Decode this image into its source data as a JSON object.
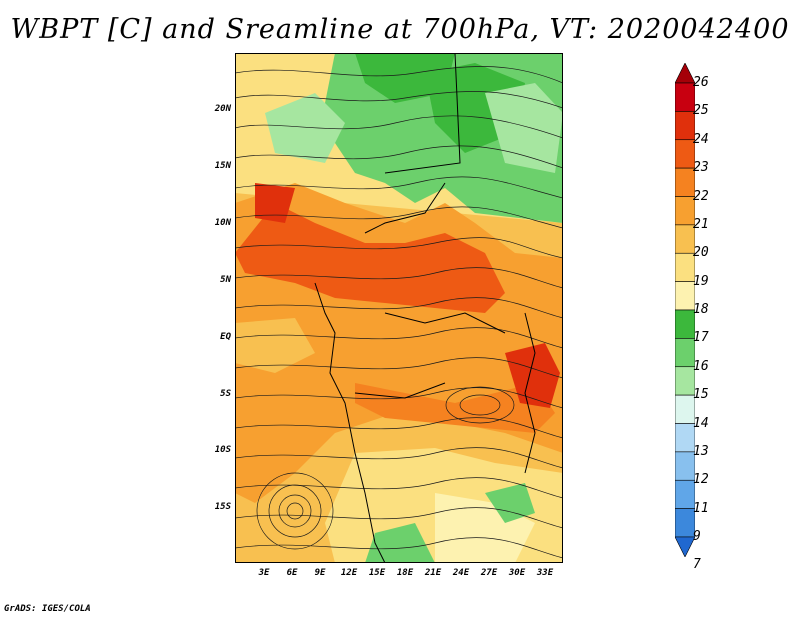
{
  "title": "WBPT [C] and Sreamline at 700hPa, VT: 2020042400",
  "credit": "GrADS: IGES/COLA",
  "map": {
    "lat_ticks": [
      "20N",
      "15N",
      "10N",
      "5N",
      "EQ",
      "5S",
      "10S",
      "15S"
    ],
    "lon_ticks": [
      "3E",
      "6E",
      "9E",
      "12E",
      "15E",
      "18E",
      "21E",
      "24E",
      "27E",
      "30E",
      "33E"
    ],
    "extent": {
      "lon_min": 0,
      "lon_max": 35,
      "lat_min": -20,
      "lat_max": 24.5
    }
  },
  "colorbar": {
    "labels": [
      "26",
      "25",
      "24",
      "23",
      "22",
      "21",
      "20",
      "19",
      "18",
      "17",
      "16",
      "15",
      "14",
      "13",
      "12",
      "11",
      "9",
      "7"
    ],
    "colors": [
      "#a50008",
      "#c80010",
      "#e0300c",
      "#ee5a14",
      "#f58220",
      "#f7a030",
      "#f8c050",
      "#fbe080",
      "#fdf2b0",
      "#3cb83c",
      "#6cd06c",
      "#a6e6a0",
      "#ddf6ee",
      "#b0d8f4",
      "#88c0ee",
      "#60a6e8",
      "#3c88dc",
      "#2068d0"
    ]
  }
}
